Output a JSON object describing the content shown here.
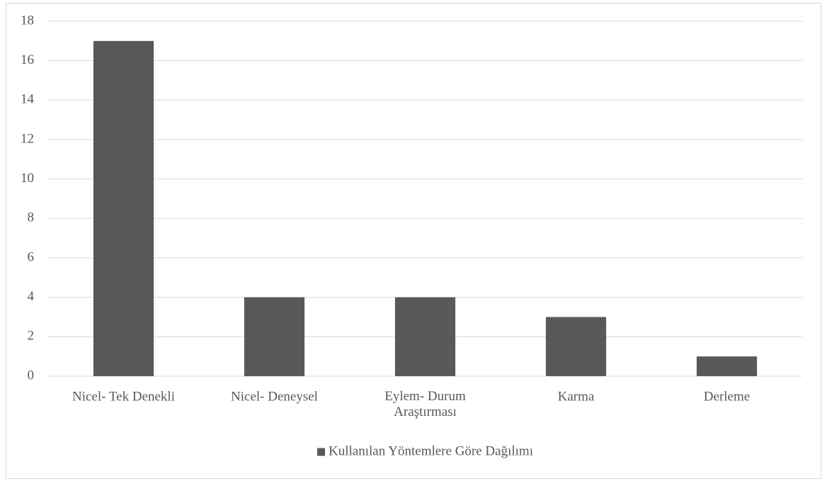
{
  "chart_data": {
    "type": "bar",
    "categories": [
      "Nicel- Tek Denekli",
      "Nicel- Deneysel",
      "Eylem- Durum Araştırması",
      "Karma",
      "Derleme"
    ],
    "series": [
      {
        "name": "Kullanılan Yöntemlere Göre Dağılımı",
        "color": "#595959",
        "values": [
          17,
          4,
          4,
          3,
          1
        ]
      }
    ],
    "ylim": [
      0,
      18
    ],
    "yticks": [
      0,
      2,
      4,
      6,
      8,
      10,
      12,
      14,
      16,
      18
    ],
    "grid": true,
    "legend": "bottom"
  }
}
